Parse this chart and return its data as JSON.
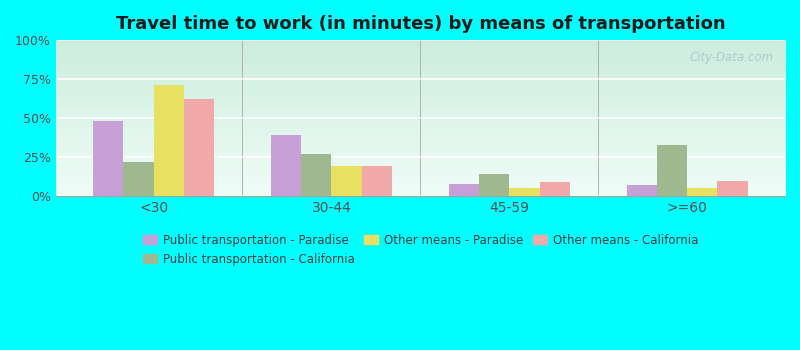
{
  "title": "Travel time to work (in minutes) by means of transportation",
  "categories": [
    "<30",
    "30-44",
    "45-59",
    ">=60"
  ],
  "series_order": [
    "Public transportation - Paradise",
    "Public transportation - California",
    "Other means - Paradise",
    "Other means - California"
  ],
  "series": {
    "Public transportation - Paradise": [
      48,
      39,
      8,
      7
    ],
    "Public transportation - California": [
      22,
      27,
      14,
      33
    ],
    "Other means - Paradise": [
      71,
      19,
      5,
      5
    ],
    "Other means - California": [
      62,
      19,
      9,
      10
    ]
  },
  "colors": {
    "Public transportation - Paradise": "#c8a0d8",
    "Public transportation - California": "#a0b890",
    "Other means - Paradise": "#e8e060",
    "Other means - California": "#f0a8a8"
  },
  "ylim": [
    0,
    100
  ],
  "yticks": [
    0,
    25,
    50,
    75,
    100
  ],
  "ytick_labels": [
    "0%",
    "25%",
    "50%",
    "75%",
    "100%"
  ],
  "outer_bg": "#00ffff",
  "plot_bg_top": "#c8e8d8",
  "plot_bg_bottom": "#e8f8f0",
  "watermark": "City-Data.com",
  "bar_width": 0.17,
  "legend_ncol_row1": 3,
  "title_fontsize": 13
}
